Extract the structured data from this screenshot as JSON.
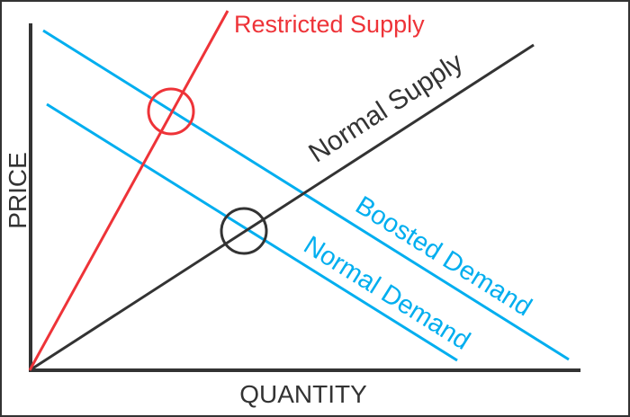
{
  "diagram": {
    "axes": {
      "y_label": "PRICE",
      "x_label": "QUANTITY"
    },
    "curves": [
      {
        "id": "restricted-supply",
        "label": "Restricted Supply",
        "color": "#ee3338",
        "kind": "supply"
      },
      {
        "id": "normal-supply",
        "label": "Normal Supply",
        "color": "#333333",
        "kind": "supply"
      },
      {
        "id": "boosted-demand",
        "label": "Boosted Demand",
        "color": "#00aeef",
        "kind": "demand"
      },
      {
        "id": "normal-demand",
        "label": "Normal Demand",
        "color": "#00aeef",
        "kind": "demand"
      }
    ],
    "equilibria": [
      {
        "between": [
          "restricted-supply",
          "boosted-demand"
        ],
        "color": "#ee3338"
      },
      {
        "between": [
          "normal-supply",
          "normal-demand"
        ],
        "color": "#333333"
      }
    ],
    "axis_color": "#333333"
  }
}
